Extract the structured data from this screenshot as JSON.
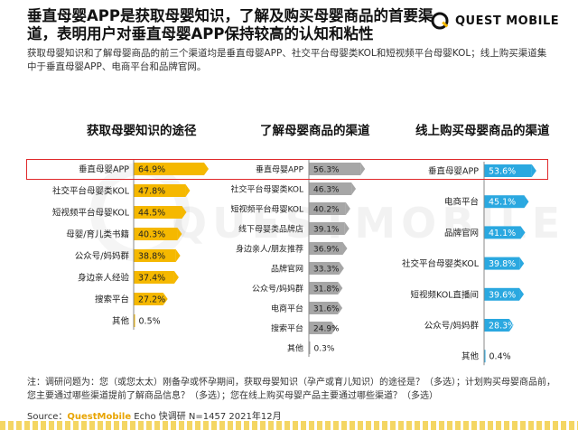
{
  "header": {
    "title": "垂直母婴APP是获取母婴知识，了解及购买母婴商品的首要渠道，表明用户对垂直母婴APP保持较高的认知和粘性",
    "subtitle": "获取母婴知识和了解母婴商品的前三个渠道均是垂直母婴APP、社交平台母婴类KOL和短视频平台母婴KOL；线上购买渠道集中于垂直母婴APP、电商平台和品牌官网。",
    "logo": "QUEST MOBILE"
  },
  "watermark": "QUESTMOBILE",
  "colors": {
    "gold": "#f5b800",
    "gray": "#a6a6a6",
    "blue": "#2aa8e0",
    "highlight": "#e0292b"
  },
  "chart_data": [
    {
      "type": "bar",
      "orientation": "horizontal",
      "title": "获取母婴知识的途径",
      "categories": [
        "垂直母婴APP",
        "社交平台母婴类KOL",
        "短视频平台母婴KOL",
        "母婴/育儿类书籍",
        "公众号/妈妈群",
        "身边亲人经验",
        "搜索平台",
        "其他"
      ],
      "values": [
        64.9,
        47.8,
        44.5,
        40.3,
        38.8,
        37.4,
        27.2,
        0.5
      ],
      "labels": [
        "64.9%",
        "47.8%",
        "44.5%",
        "40.3%",
        "38.8%",
        "37.4%",
        "27.2%",
        "0.5%"
      ],
      "color": "#f5b800",
      "xlim": [
        0,
        70
      ]
    },
    {
      "type": "bar",
      "orientation": "horizontal",
      "title": "了解母婴商品的渠道",
      "categories": [
        "垂直母婴APP",
        "社交平台母婴类KOL",
        "短视频平台母婴KOL",
        "线下母婴类品牌店",
        "身边亲人/朋友推荐",
        "品牌官网",
        "公众号/妈妈群",
        "电商平台",
        "搜索平台",
        "其他"
      ],
      "values": [
        56.3,
        46.3,
        40.2,
        39.1,
        36.9,
        33.3,
        31.8,
        31.6,
        24.9,
        0.3
      ],
      "labels": [
        "56.3%",
        "46.3%",
        "40.2%",
        "39.1%",
        "36.9%",
        "33.3%",
        "31.8%",
        "31.6%",
        "24.9%",
        "0.3%"
      ],
      "color": "#a6a6a6",
      "xlim": [
        0,
        70
      ]
    },
    {
      "type": "bar",
      "orientation": "horizontal",
      "title": "线上购买母婴商品的渠道",
      "categories": [
        "垂直母婴APP",
        "电商平台",
        "品牌官网",
        "社交平台母婴类KOL",
        "短视频KOL直播间",
        "公众号/妈妈群",
        "其他"
      ],
      "values": [
        53.6,
        45.1,
        41.1,
        39.8,
        39.6,
        28.3,
        0.4
      ],
      "labels": [
        "53.6%",
        "45.1%",
        "41.1%",
        "39.8%",
        "39.6%",
        "28.3%",
        "0.4%"
      ],
      "color": "#2aa8e0",
      "xlim": [
        0,
        70
      ]
    }
  ],
  "footnote": "注：调研问题为：您（或您太太）刚备孕或怀孕期间，获取母婴知识（孕产或育儿知识）的途径是？（多选）；计划购买母婴商品前，您主要通过哪些渠道提前了解商品信息？（多选）；您在线上购买母婴产品主要通过哪些渠道？（多选）",
  "source": {
    "prefix": "Source：",
    "brand": "QuestMobile",
    "rest": " Echo 快调研 N=1457 2021年12月"
  }
}
